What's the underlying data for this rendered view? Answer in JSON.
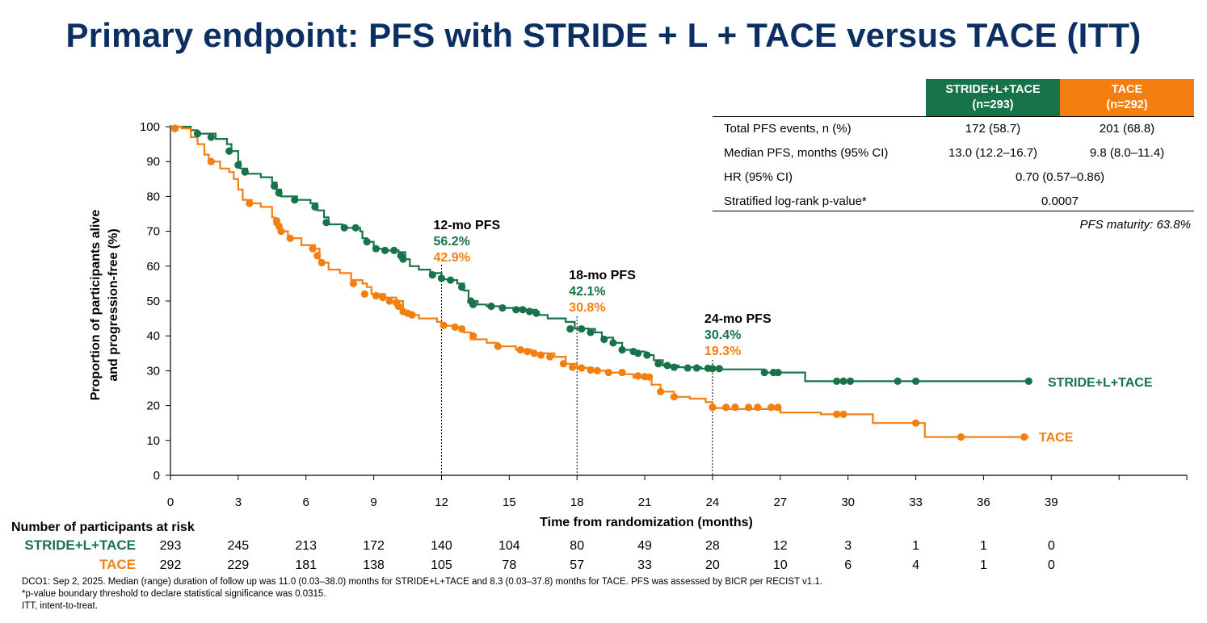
{
  "title": "Primary endpoint: PFS with STRIDE + L + TACE versus TACE (ITT)",
  "colors": {
    "title": "#0b2e63",
    "stride": "#19734a",
    "tace": "#f47f10"
  },
  "table": {
    "headers": [
      {
        "line1": "STRIDE+L+TACE",
        "line2": "(n=293)"
      },
      {
        "line1": "TACE",
        "line2": "(n=292)"
      }
    ],
    "rows": [
      {
        "label": "Total PFS events, n (%)",
        "a": "172 (58.7)",
        "b": "201 (68.8)"
      },
      {
        "label": "Median PFS, months (95% CI)",
        "a": "13.0 (12.2–16.7)",
        "b": "9.8 (8.0–11.4)"
      }
    ],
    "hr": {
      "label": "HR (95% CI)",
      "value": "0.70 (0.57–0.86)"
    },
    "p": {
      "label": "Stratified log-rank p-value*",
      "value": "0.0007"
    }
  },
  "maturity": "PFS maturity: 63.8%",
  "risk_table": {
    "title": "Number of participants at risk",
    "rows": [
      {
        "label": "STRIDE+L+TACE",
        "values": [
          "293",
          "245",
          "213",
          "172",
          "140",
          "104",
          "80",
          "49",
          "28",
          "12",
          "3",
          "1",
          "1",
          "0"
        ]
      },
      {
        "label": "TACE",
        "values": [
          "292",
          "229",
          "181",
          "138",
          "105",
          "78",
          "57",
          "33",
          "20",
          "10",
          "6",
          "4",
          "1",
          "0"
        ]
      }
    ]
  },
  "footer": [
    "DCO1: Sep 2, 2025. Median (range) duration of follow up was 11.0 (0.03–38.0) months for STRIDE+L+TACE and 8.3 (0.03–37.8) months for TACE. PFS was assessed by BICR per RECIST v1.1.",
    "*p-value boundary threshold to declare statistical significance was 0.0315.",
    "ITT, intent-to-treat."
  ],
  "chart_data": {
    "type": "line",
    "subtype": "kaplan-meier step",
    "xlabel": "Time from randomization (months)",
    "ylabel_lines": [
      "Proportion of participants alive",
      "and progression-free (%)"
    ],
    "xlim": [
      0,
      45
    ],
    "ylim": [
      0,
      100
    ],
    "xticks": [
      0,
      3,
      6,
      9,
      12,
      15,
      18,
      21,
      24,
      27,
      30,
      33,
      36,
      39
    ],
    "yticks": [
      0,
      10,
      20,
      30,
      40,
      50,
      60,
      70,
      80,
      90,
      100
    ],
    "series": [
      {
        "name": "STRIDE+L+TACE",
        "color": "#19734a",
        "points": [
          [
            0,
            100
          ],
          [
            0.9,
            99
          ],
          [
            1.2,
            98
          ],
          [
            2.0,
            96.5
          ],
          [
            2.5,
            95
          ],
          [
            2.7,
            93
          ],
          [
            3.0,
            90
          ],
          [
            3.1,
            88
          ],
          [
            3.4,
            86.5
          ],
          [
            4.0,
            85.5
          ],
          [
            4.5,
            84
          ],
          [
            4.7,
            82
          ],
          [
            4.9,
            80
          ],
          [
            5.6,
            79
          ],
          [
            6.2,
            78
          ],
          [
            6.5,
            76
          ],
          [
            6.8,
            74
          ],
          [
            7.0,
            72
          ],
          [
            7.6,
            71
          ],
          [
            8.0,
            71
          ],
          [
            8.4,
            70
          ],
          [
            8.5,
            68
          ],
          [
            8.7,
            67
          ],
          [
            9.0,
            65
          ],
          [
            9.4,
            64.5
          ],
          [
            10.1,
            64
          ],
          [
            10.4,
            62
          ],
          [
            10.6,
            60
          ],
          [
            11.0,
            59
          ],
          [
            11.5,
            58
          ],
          [
            12.0,
            56.2
          ],
          [
            12.5,
            56
          ],
          [
            12.7,
            55
          ],
          [
            13.0,
            53
          ],
          [
            13.2,
            50
          ],
          [
            13.6,
            49
          ],
          [
            14.0,
            48.5
          ],
          [
            14.8,
            48
          ],
          [
            15.5,
            47.5
          ],
          [
            16.2,
            46
          ],
          [
            16.7,
            45
          ],
          [
            17.5,
            44
          ],
          [
            17.9,
            42.1
          ],
          [
            18.5,
            42
          ],
          [
            18.8,
            41
          ],
          [
            19.1,
            39.5
          ],
          [
            19.6,
            38
          ],
          [
            20.0,
            36
          ],
          [
            20.4,
            35.5
          ],
          [
            21.0,
            34.5
          ],
          [
            21.4,
            33
          ],
          [
            21.8,
            31.5
          ],
          [
            22.5,
            31
          ],
          [
            23.5,
            30.6
          ],
          [
            24.0,
            30.4
          ],
          [
            26.3,
            29.5
          ],
          [
            28.1,
            27
          ],
          [
            30.0,
            27
          ],
          [
            38.0,
            27
          ]
        ],
        "markers": [
          [
            0.2,
            99.5
          ],
          [
            1.2,
            98
          ],
          [
            1.8,
            97
          ],
          [
            2.6,
            93
          ],
          [
            3.0,
            89
          ],
          [
            3.3,
            87
          ],
          [
            4.6,
            83
          ],
          [
            4.8,
            81
          ],
          [
            5.5,
            79
          ],
          [
            6.4,
            77
          ],
          [
            6.9,
            72.5
          ],
          [
            7.7,
            71
          ],
          [
            8.2,
            71
          ],
          [
            8.7,
            67
          ],
          [
            9.1,
            65
          ],
          [
            9.5,
            64.5
          ],
          [
            9.9,
            64.5
          ],
          [
            10.2,
            63
          ],
          [
            10.3,
            62
          ],
          [
            11.6,
            57.5
          ],
          [
            12.0,
            56.5
          ],
          [
            12.4,
            56
          ],
          [
            12.9,
            54
          ],
          [
            13.3,
            50
          ],
          [
            13.4,
            49
          ],
          [
            14.2,
            48.5
          ],
          [
            14.7,
            48
          ],
          [
            15.3,
            47.5
          ],
          [
            15.6,
            47.5
          ],
          [
            15.9,
            47
          ],
          [
            16.2,
            46.5
          ],
          [
            17.7,
            42
          ],
          [
            18.2,
            42
          ],
          [
            18.6,
            41
          ],
          [
            19.2,
            39
          ],
          [
            19.6,
            38
          ],
          [
            20.0,
            36
          ],
          [
            20.5,
            35.5
          ],
          [
            20.7,
            35
          ],
          [
            21.1,
            34.5
          ],
          [
            21.6,
            32
          ],
          [
            22.0,
            31.5
          ],
          [
            22.3,
            31
          ],
          [
            22.9,
            30.8
          ],
          [
            23.3,
            30.8
          ],
          [
            23.8,
            30.7
          ],
          [
            24.0,
            30.6
          ],
          [
            24.3,
            30.6
          ],
          [
            26.3,
            29.5
          ],
          [
            26.7,
            29.5
          ],
          [
            26.9,
            29.5
          ],
          [
            29.5,
            27
          ],
          [
            29.8,
            27
          ],
          [
            30.1,
            27
          ],
          [
            32.2,
            27
          ],
          [
            33.0,
            27
          ],
          [
            38.0,
            27
          ]
        ]
      },
      {
        "name": "TACE",
        "color": "#f47f10",
        "points": [
          [
            0,
            100
          ],
          [
            0.5,
            99.5
          ],
          [
            0.9,
            97
          ],
          [
            1.2,
            95
          ],
          [
            1.5,
            92
          ],
          [
            1.7,
            90
          ],
          [
            2.2,
            88
          ],
          [
            2.6,
            87
          ],
          [
            2.8,
            85
          ],
          [
            3.0,
            82
          ],
          [
            3.2,
            79
          ],
          [
            3.6,
            78
          ],
          [
            4.0,
            77
          ],
          [
            4.5,
            74
          ],
          [
            4.6,
            72
          ],
          [
            4.8,
            70
          ],
          [
            5.2,
            68
          ],
          [
            5.8,
            66
          ],
          [
            6.4,
            65
          ],
          [
            6.6,
            61
          ],
          [
            7.0,
            59
          ],
          [
            7.5,
            58
          ],
          [
            8.0,
            56
          ],
          [
            8.5,
            55
          ],
          [
            8.7,
            54
          ],
          [
            8.9,
            52
          ],
          [
            9.5,
            51
          ],
          [
            10.0,
            50
          ],
          [
            10.3,
            47
          ],
          [
            10.6,
            46
          ],
          [
            11.0,
            45
          ],
          [
            11.8,
            44
          ],
          [
            12.0,
            42.9
          ],
          [
            12.5,
            42.5
          ],
          [
            13.0,
            41
          ],
          [
            13.3,
            39
          ],
          [
            14.0,
            38
          ],
          [
            14.5,
            37
          ],
          [
            15.3,
            36
          ],
          [
            16.0,
            35
          ],
          [
            17.0,
            34
          ],
          [
            17.5,
            32
          ],
          [
            18.0,
            30.8
          ],
          [
            18.7,
            30
          ],
          [
            19.4,
            29.5
          ],
          [
            20.0,
            29
          ],
          [
            20.5,
            28
          ],
          [
            21.3,
            26
          ],
          [
            21.7,
            24
          ],
          [
            22.3,
            22.5
          ],
          [
            23.0,
            22
          ],
          [
            23.7,
            21
          ],
          [
            24.0,
            19.3
          ],
          [
            24.5,
            19
          ],
          [
            25.0,
            19
          ],
          [
            27.0,
            18
          ],
          [
            28.8,
            17.5
          ],
          [
            30.0,
            17.5
          ],
          [
            31.1,
            15
          ],
          [
            33.0,
            15
          ],
          [
            33.4,
            11
          ],
          [
            35.0,
            11
          ],
          [
            38.0,
            11
          ]
        ],
        "markers": [
          [
            0.2,
            99.5
          ],
          [
            1.8,
            90
          ],
          [
            3.5,
            78
          ],
          [
            4.7,
            73
          ],
          [
            4.8,
            71.5
          ],
          [
            4.9,
            70
          ],
          [
            5.3,
            68
          ],
          [
            6.3,
            65
          ],
          [
            6.5,
            63
          ],
          [
            6.7,
            61
          ],
          [
            8.1,
            55
          ],
          [
            8.6,
            52
          ],
          [
            9.1,
            51.5
          ],
          [
            9.4,
            51
          ],
          [
            9.7,
            50
          ],
          [
            10.0,
            49.5
          ],
          [
            10.1,
            48.5
          ],
          [
            10.3,
            47
          ],
          [
            10.5,
            46.5
          ],
          [
            10.7,
            46
          ],
          [
            12.1,
            43
          ],
          [
            12.6,
            42.5
          ],
          [
            12.9,
            42
          ],
          [
            13.4,
            40
          ],
          [
            14.5,
            37
          ],
          [
            15.5,
            36
          ],
          [
            15.8,
            35.5
          ],
          [
            16.1,
            35
          ],
          [
            16.4,
            34.5
          ],
          [
            16.8,
            34
          ],
          [
            17.4,
            32
          ],
          [
            17.8,
            31
          ],
          [
            18.2,
            30.8
          ],
          [
            18.6,
            30.2
          ],
          [
            18.9,
            30
          ],
          [
            19.4,
            29.5
          ],
          [
            20.0,
            29.5
          ],
          [
            20.7,
            28.5
          ],
          [
            21.0,
            28.3
          ],
          [
            21.2,
            28.2
          ],
          [
            21.7,
            24
          ],
          [
            22.3,
            22.5
          ],
          [
            24.0,
            19.5
          ],
          [
            24.6,
            19.5
          ],
          [
            25.0,
            19.5
          ],
          [
            25.6,
            19.5
          ],
          [
            26.0,
            19.5
          ],
          [
            26.6,
            19.5
          ],
          [
            26.9,
            19.5
          ],
          [
            29.5,
            17.5
          ],
          [
            29.8,
            17.5
          ],
          [
            33.0,
            15
          ],
          [
            35.0,
            11
          ],
          [
            37.8,
            11
          ]
        ]
      }
    ],
    "landmarks": [
      {
        "x": 12,
        "label": "12-mo PFS",
        "a": "56.2%",
        "b": "42.9%"
      },
      {
        "x": 18,
        "label": "18-mo PFS",
        "a": "42.1%",
        "b": "30.8%"
      },
      {
        "x": 24,
        "label": "24-mo PFS",
        "a": "30.4%",
        "b": "19.3%"
      }
    ],
    "end_labels": [
      "STRIDE+L+TACE",
      "TACE"
    ]
  }
}
